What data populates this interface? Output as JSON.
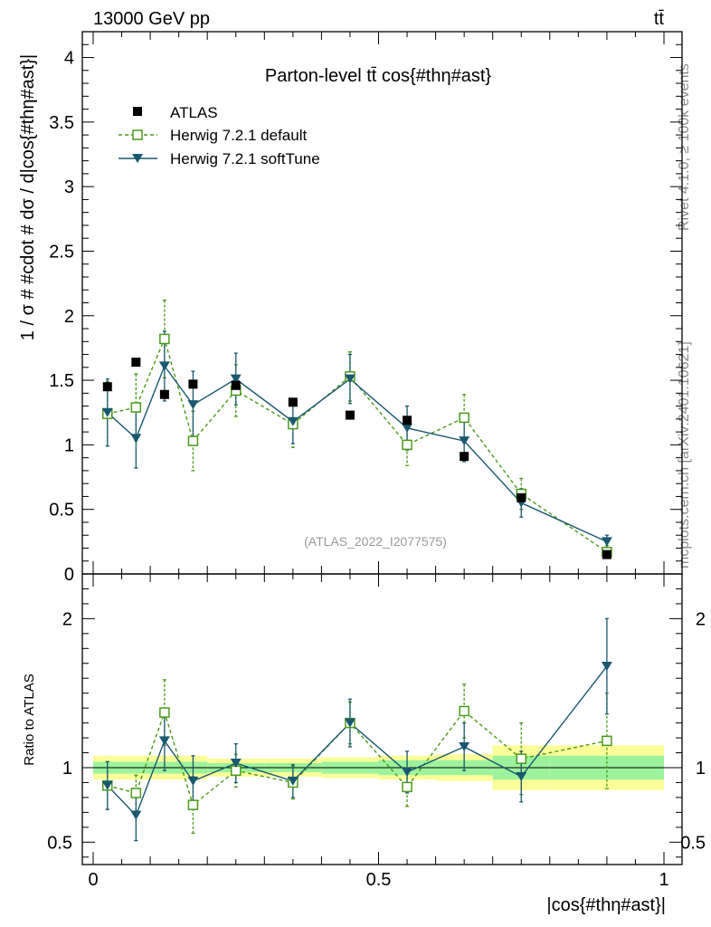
{
  "header": {
    "left": "13000 GeV pp",
    "right": "tt̄"
  },
  "side_labels": {
    "top": "Rivet 4.1.0, ≥ 100k events",
    "bottom": "mcplots.cern.ch [arXiv:2401.10621]"
  },
  "watermark": "(ATLAS_2022_I2077575)",
  "chart_data": [
    {
      "type": "scatter",
      "title": "Parton-level tt̄ cos{#thη#ast}",
      "ylabel": "1 / σ # #cdot # dσ / d|cos{#thη#ast}|",
      "xlabel": "|cos{#thη#ast}|",
      "xlim": [
        0,
        1
      ],
      "ylim": [
        0,
        4.2
      ],
      "y_ticks": [
        "0",
        "0.5",
        "1",
        "1.5",
        "2",
        "2.5",
        "3",
        "3.5",
        "4"
      ],
      "x_ticks": [
        "0",
        "0.5",
        "1"
      ],
      "bin_edges": [
        0.0,
        0.05,
        0.1,
        0.15,
        0.2,
        0.3,
        0.4,
        0.5,
        0.6,
        0.7,
        0.8,
        1.0
      ],
      "x": [
        0.025,
        0.075,
        0.125,
        0.175,
        0.25,
        0.35,
        0.45,
        0.55,
        0.65,
        0.75,
        0.9
      ],
      "legend": [
        "ATLAS",
        "Herwig 7.2.1 default",
        "Herwig 7.2.1 softTune"
      ],
      "series": [
        {
          "name": "ATLAS",
          "color": "#000000",
          "values": [
            1.45,
            1.64,
            1.39,
            1.47,
            1.46,
            1.33,
            1.23,
            1.19,
            0.91,
            0.59,
            0.15
          ]
        },
        {
          "name": "Herwig 7.2.1 default",
          "color": "#4a9a1a",
          "values": [
            1.24,
            1.29,
            1.82,
            1.03,
            1.42,
            1.16,
            1.53,
            1.0,
            1.21,
            0.62,
            0.17
          ],
          "errors": [
            0.25,
            0.26,
            0.3,
            0.23,
            0.2,
            0.18,
            0.19,
            0.16,
            0.18,
            0.12,
            0.05
          ]
        },
        {
          "name": "Herwig 7.2.1 softTune",
          "color": "#1a5870",
          "values": [
            1.25,
            1.05,
            1.61,
            1.31,
            1.51,
            1.18,
            1.51,
            1.13,
            1.03,
            0.55,
            0.25
          ],
          "errors": [
            0.26,
            0.23,
            0.27,
            0.26,
            0.2,
            0.17,
            0.19,
            0.17,
            0.16,
            0.11,
            0.05
          ]
        }
      ]
    },
    {
      "type": "scatter",
      "ylabel": "Ratio to ATLAS",
      "xlabel": "|cos{#thη#ast}|",
      "xlim": [
        0,
        1
      ],
      "ylim": [
        0.35,
        2.3
      ],
      "y_ticks": [
        "0.5",
        "1",
        "2"
      ],
      "x_ticks": [
        "0",
        "0.5",
        "1"
      ],
      "band_inner": [
        0.04,
        0.04,
        0.04,
        0.04,
        0.03,
        0.03,
        0.04,
        0.05,
        0.05,
        0.08,
        0.08
      ],
      "band_outer": [
        0.08,
        0.08,
        0.08,
        0.08,
        0.06,
        0.06,
        0.07,
        0.08,
        0.09,
        0.15,
        0.15
      ],
      "series": [
        {
          "name": "Herwig 7.2.1 default",
          "values": [
            0.88,
            0.83,
            1.37,
            0.75,
            0.98,
            0.9,
            1.3,
            0.87,
            1.38,
            1.06,
            1.18
          ],
          "errors": [
            0.16,
            0.12,
            0.22,
            0.19,
            0.11,
            0.11,
            0.14,
            0.13,
            0.18,
            0.24,
            0.32
          ]
        },
        {
          "name": "Herwig 7.2.1 softTune",
          "values": [
            0.88,
            0.68,
            1.18,
            0.91,
            1.03,
            0.91,
            1.3,
            0.97,
            1.14,
            0.94,
            1.68
          ],
          "errors": [
            0.16,
            0.17,
            0.2,
            0.17,
            0.13,
            0.11,
            0.16,
            0.14,
            0.16,
            0.17,
            0.32
          ]
        }
      ]
    }
  ]
}
